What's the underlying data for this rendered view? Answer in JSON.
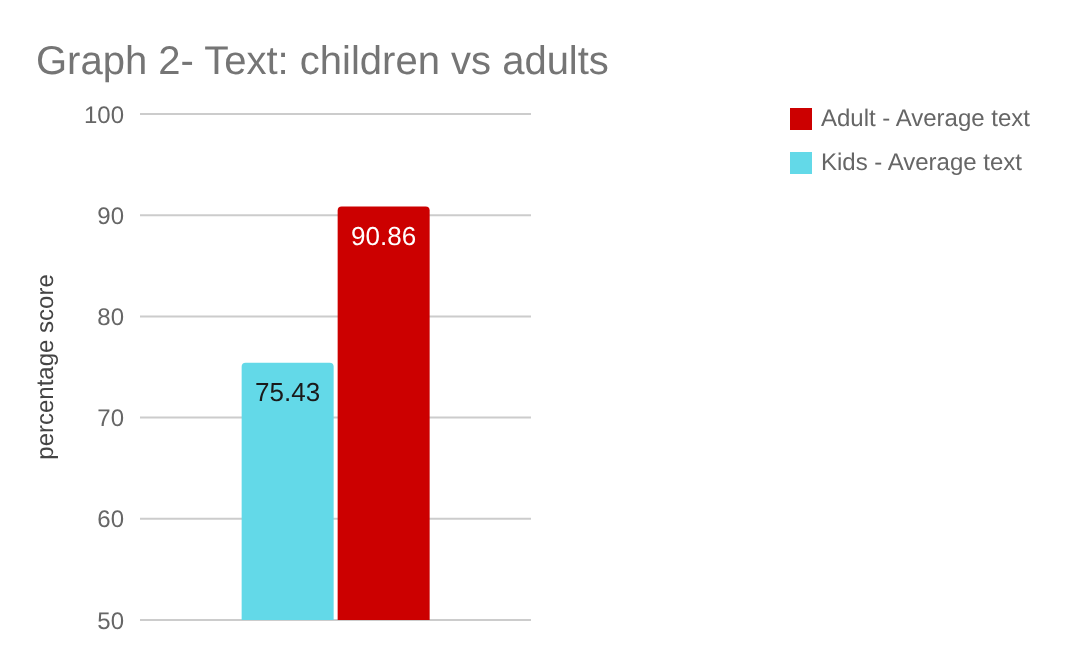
{
  "chart_data": {
    "type": "bar",
    "title": "Graph 2- Text: children vs adults",
    "ylabel": "percentage score",
    "categories": [
      null
    ],
    "series": [
      {
        "name": "Kids - Average text",
        "color": "#63d9e8",
        "values": [
          75.43
        ]
      },
      {
        "name": "Adult - Average text",
        "color": "#cc0000",
        "values": [
          90.86
        ]
      }
    ],
    "ylim": [
      50,
      100
    ],
    "yticks": [
      50,
      60,
      70,
      80,
      90,
      100
    ],
    "grid": "y",
    "legend": "top right",
    "data_labels": true
  }
}
